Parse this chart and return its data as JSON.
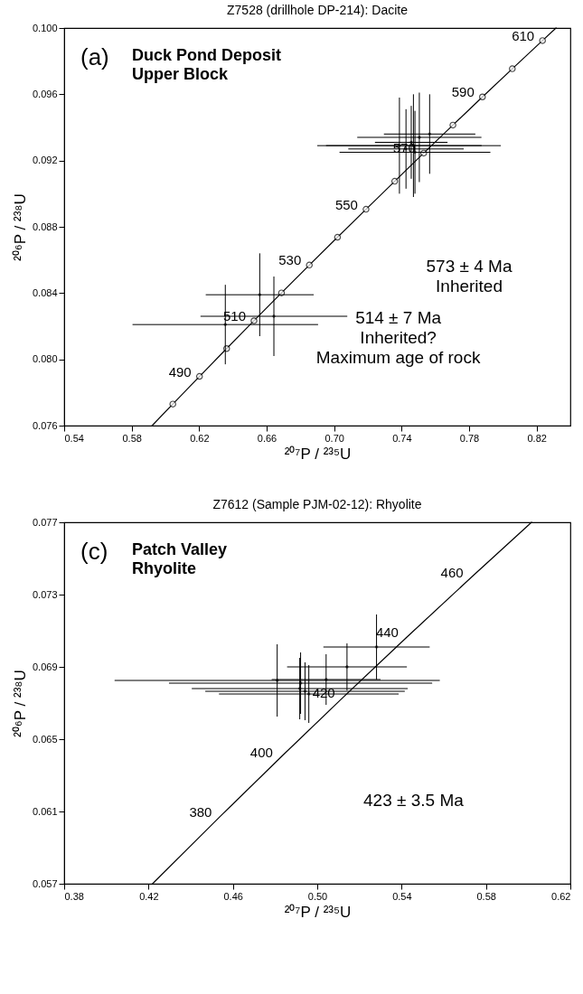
{
  "chart_data": [
    {
      "type": "scatter",
      "title": "Z7528 (drillhole DP-214): Dacite",
      "xlabel": "²⁰⁷P / ²³⁵U",
      "ylabel": "²⁰⁶P / ²³⁸U",
      "xlim": [
        0.54,
        0.84
      ],
      "ylim": [
        0.076,
        0.1
      ],
      "xticks": [
        0.54,
        0.58,
        0.62,
        0.66,
        {
          "value": 0.7,
          "label": "0.70"
        },
        0.74,
        0.78,
        0.82
      ],
      "yticks": [
        0.076,
        {
          "value": 0.08,
          "label": "0.080"
        },
        0.084,
        0.088,
        0.092,
        0.096,
        {
          "value": 0.1,
          "label": "0.100"
        }
      ],
      "grid": false,
      "series": [
        {
          "type": "line",
          "color": "#000000",
          "marker": "none",
          "x": [
            0.5921,
            0.6044,
            0.6202,
            0.6363,
            0.6525,
            0.6688,
            0.6853,
            0.702,
            0.7189,
            0.7359,
            0.7531,
            0.7704,
            0.7879,
            0.8056,
            0.8235,
            0.8315
          ],
          "values": [
            0.076,
            0.0773,
            0.07897,
            0.08065,
            0.08233,
            0.08401,
            0.08569,
            0.08737,
            0.08906,
            0.09075,
            0.09245,
            0.09414,
            0.09584,
            0.09754,
            0.09924,
            0.1
          ]
        },
        {
          "type": "scatter",
          "color": "#000000",
          "marker": "circle",
          "x": [
            0.6044,
            0.6202,
            0.6363,
            0.6525,
            0.6688,
            0.6853,
            0.702,
            0.7189,
            0.7359,
            0.7531,
            0.7704,
            0.7879,
            0.8056,
            0.8235
          ],
          "values": [
            0.0773,
            0.07897,
            0.08065,
            0.08233,
            0.08401,
            0.08569,
            0.08737,
            0.08906,
            0.09075,
            0.09245,
            0.09414,
            0.09584,
            0.09754,
            0.09924
          ]
        },
        {
          "type": "scatter",
          "color": "#000000",
          "marker": "circle",
          "x": [
            0.6559,
            0.6355,
            0.6643,
            0.7387,
            0.747,
            0.7479,
            0.7457,
            0.7426,
            0.7505,
            0.7566
          ],
          "values": [
            0.0839,
            0.0821,
            0.0826,
            0.0929,
            0.0929,
            0.0925,
            0.0931,
            0.0927,
            0.0934,
            0.0936
          ],
          "xerrors": [
            0.032,
            0.055,
            0.0435,
            0.0487,
            0.0518,
            0.0447,
            0.0215,
            0.0342,
            0.0368,
            0.0271
          ],
          "errors": [
            0.0025,
            0.0024,
            0.0024,
            0.0029,
            0.0031,
            0.0025,
            0.0022,
            0.0024,
            0.0027,
            0.0024
          ]
        }
      ],
      "annotations": [
        "(a)",
        "Duck Pond Deposit\nUpper Block",
        "573 ± 4 Ma\nInherited",
        "514 ± 7 Ma\nInherited?\nMaximum age of rock",
        {
          "text": "490",
          "x": 0.6202,
          "y": 0.07897
        },
        {
          "text": "510",
          "x": 0.6525,
          "y": 0.08233
        },
        {
          "text": "530",
          "x": 0.6853,
          "y": 0.08569
        },
        {
          "text": "550",
          "x": 0.7189,
          "y": 0.08906
        },
        {
          "text": "570",
          "x": 0.7531,
          "y": 0.09245
        },
        {
          "text": "590",
          "x": 0.7879,
          "y": 0.09584
        },
        {
          "text": "610",
          "x": 0.8235,
          "y": 0.09924
        }
      ]
    },
    {
      "type": "scatter",
      "title": "Z7612 (Sample PJM-02-12): Rhyolite",
      "xlabel": "²⁰⁷P / ²³⁵U",
      "ylabel": "²⁰⁶P / ²³⁸U",
      "xlim": [
        0.38,
        0.62
      ],
      "ylim": [
        0.057,
        0.077
      ],
      "xticks": [
        0.38,
        0.42,
        0.46,
        {
          "value": 0.5,
          "label": "0.50"
        },
        0.54,
        0.58,
        0.62
      ],
      "yticks": [
        0.057,
        0.061,
        0.065,
        0.069,
        0.073,
        0.077
      ],
      "grid": false,
      "series": [
        {
          "type": "line",
          "color": "#000000",
          "marker": "none",
          "x": [
            0.4219,
            0.4539,
            0.4828,
            0.5123,
            0.5424,
            0.5731,
            0.6016
          ],
          "values": [
            0.057,
            0.06072,
            0.06401,
            0.06732,
            0.07064,
            0.07396,
            0.077
          ]
        },
        {
          "type": "scatter",
          "color": "#000000",
          "marker": "circle",
          "x": [
            0.481,
            0.4921,
            0.4917,
            0.4942,
            0.496,
            0.5042,
            0.5281,
            0.5141
          ],
          "values": [
            0.06825,
            0.0681,
            0.0678,
            0.06765,
            0.0675,
            0.0683,
            0.0701,
            0.069
          ],
          "xerrors": [
            0.0771,
            0.0624,
            0.0512,
            0.0473,
            0.0426,
            0.0258,
            0.0252,
            0.0284
          ],
          "errors": [
            0.002,
            0.0017,
            0.0017,
            0.0016,
            0.0016,
            0.0014,
            0.0018,
            0.0013
          ]
        }
      ],
      "annotations": [
        "(c)",
        "Patch Valley\nRhyolite",
        "423 ± 3.5 Ma",
        {
          "text": "380",
          "x": 0.4539,
          "y": 0.06072
        },
        {
          "text": "400",
          "x": 0.4828,
          "y": 0.06401
        },
        {
          "text": "420",
          "x": 0.5123,
          "y": 0.06732
        },
        {
          "text": "440",
          "x": 0.5424,
          "y": 0.07064
        },
        {
          "text": "460",
          "x": 0.5731,
          "y": 0.07396
        }
      ]
    }
  ]
}
